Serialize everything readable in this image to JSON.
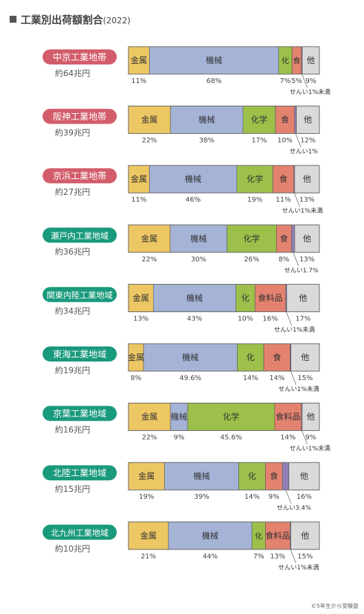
{
  "title": "工業別出荷額割合",
  "year": "(2022)",
  "credit": "©5年生から受験塾",
  "colors": {
    "metal": "#edc763",
    "machine": "#a5b3d6",
    "chemical": "#9cc04a",
    "food": "#e3826f",
    "textile": "#8f7fb4",
    "other": "#dadada",
    "badge_pink": "#d35d6b",
    "badge_green": "#1a9a7c"
  },
  "chart_data": {
    "type": "bar",
    "orientation": "horizontal-stacked-100",
    "unit": "%",
    "rows": [
      {
        "region": "中京工業地帯",
        "total": "約64兆円",
        "badge": "pink",
        "segments": [
          {
            "key": "metal",
            "label": "金属",
            "value": 11,
            "value_label": "11%"
          },
          {
            "key": "machine",
            "label": "機械",
            "value": 68,
            "value_label": "68%"
          },
          {
            "key": "chemical",
            "label": "化",
            "value": 7,
            "value_label": "7%"
          },
          {
            "key": "food",
            "label": "食",
            "value": 5,
            "value_label": "5%"
          },
          {
            "key": "textile",
            "label": "",
            "value": 0.4,
            "value_label": ""
          },
          {
            "key": "other",
            "label": "他",
            "value": 9,
            "value_label": "9%"
          }
        ],
        "textile_note": "せんい1%未満"
      },
      {
        "region": "阪神工業地帯",
        "total": "約39兆円",
        "badge": "pink",
        "segments": [
          {
            "key": "metal",
            "label": "金属",
            "value": 22,
            "value_label": "22%"
          },
          {
            "key": "machine",
            "label": "機械",
            "value": 38,
            "value_label": "38%"
          },
          {
            "key": "chemical",
            "label": "化学",
            "value": 17,
            "value_label": "17%"
          },
          {
            "key": "food",
            "label": "食",
            "value": 10,
            "value_label": "10%"
          },
          {
            "key": "textile",
            "label": "",
            "value": 1,
            "value_label": ""
          },
          {
            "key": "other",
            "label": "他",
            "value": 12,
            "value_label": "12%"
          }
        ],
        "textile_note": "せんい1%"
      },
      {
        "region": "京浜工業地帯",
        "total": "約27兆円",
        "badge": "pink",
        "segments": [
          {
            "key": "metal",
            "label": "金属",
            "value": 11,
            "value_label": "11%"
          },
          {
            "key": "machine",
            "label": "機械",
            "value": 46,
            "value_label": "46%"
          },
          {
            "key": "chemical",
            "label": "化学",
            "value": 19,
            "value_label": "19%"
          },
          {
            "key": "food",
            "label": "食",
            "value": 11,
            "value_label": "11%"
          },
          {
            "key": "textile",
            "label": "",
            "value": 0.4,
            "value_label": ""
          },
          {
            "key": "other",
            "label": "他",
            "value": 13,
            "value_label": "13%"
          }
        ],
        "textile_note": "せんい1%未満"
      },
      {
        "region": "瀬戸内工業地域",
        "total": "約36兆円",
        "badge": "green",
        "segments": [
          {
            "key": "metal",
            "label": "金属",
            "value": 22,
            "value_label": "22%"
          },
          {
            "key": "machine",
            "label": "機械",
            "value": 30,
            "value_label": "30%"
          },
          {
            "key": "chemical",
            "label": "化学",
            "value": 26,
            "value_label": "26%"
          },
          {
            "key": "food",
            "label": "食",
            "value": 8,
            "value_label": "8%"
          },
          {
            "key": "textile",
            "label": "",
            "value": 1.7,
            "value_label": ""
          },
          {
            "key": "other",
            "label": "他",
            "value": 13,
            "value_label": "13%"
          }
        ],
        "textile_note": "せんい1.7%"
      },
      {
        "region": "関東内陸工業地域",
        "total": "約34兆円",
        "badge": "green",
        "segments": [
          {
            "key": "metal",
            "label": "金属",
            "value": 13,
            "value_label": "13%"
          },
          {
            "key": "machine",
            "label": "機械",
            "value": 43,
            "value_label": "43%"
          },
          {
            "key": "chemical",
            "label": "化",
            "value": 10,
            "value_label": "10%"
          },
          {
            "key": "food",
            "label": "食料品",
            "value": 16,
            "value_label": "16%"
          },
          {
            "key": "textile",
            "label": "",
            "value": 0.6,
            "value_label": ""
          },
          {
            "key": "other",
            "label": "他",
            "value": 17,
            "value_label": "17%"
          }
        ],
        "textile_note": "せんい1%未満"
      },
      {
        "region": "東海工業地域",
        "total": "約19兆円",
        "badge": "green",
        "segments": [
          {
            "key": "metal",
            "label": "金属",
            "value": 8,
            "value_label": "8%"
          },
          {
            "key": "machine",
            "label": "機械",
            "value": 49.6,
            "value_label": "49.6%"
          },
          {
            "key": "chemical",
            "label": "化",
            "value": 14,
            "value_label": "14%"
          },
          {
            "key": "food",
            "label": "食",
            "value": 14,
            "value_label": "14%"
          },
          {
            "key": "textile",
            "label": "",
            "value": 0.4,
            "value_label": ""
          },
          {
            "key": "other",
            "label": "他",
            "value": 15,
            "value_label": "15%"
          }
        ],
        "textile_note": "せんい1%未満"
      },
      {
        "region": "京葉工業地域",
        "total": "約16兆円",
        "badge": "green",
        "segments": [
          {
            "key": "metal",
            "label": "金属",
            "value": 22,
            "value_label": "22%"
          },
          {
            "key": "machine",
            "label": "機械",
            "value": 9,
            "value_label": "9%"
          },
          {
            "key": "chemical",
            "label": "化学",
            "value": 45.6,
            "value_label": "45.6%"
          },
          {
            "key": "food",
            "label": "食料品",
            "value": 14,
            "value_label": "14%"
          },
          {
            "key": "textile",
            "label": "",
            "value": 0.4,
            "value_label": ""
          },
          {
            "key": "other",
            "label": "他",
            "value": 9,
            "value_label": "9%"
          }
        ],
        "textile_note": "せんい1%未満"
      },
      {
        "region": "北陸工業地域",
        "total": "約15兆円",
        "badge": "green",
        "segments": [
          {
            "key": "metal",
            "label": "金属",
            "value": 19,
            "value_label": "19%"
          },
          {
            "key": "machine",
            "label": "機械",
            "value": 39,
            "value_label": "39%"
          },
          {
            "key": "chemical",
            "label": "化",
            "value": 14,
            "value_label": "14%"
          },
          {
            "key": "food",
            "label": "食",
            "value": 9,
            "value_label": "9%"
          },
          {
            "key": "textile",
            "label": "",
            "value": 3.4,
            "value_label": ""
          },
          {
            "key": "other",
            "label": "他",
            "value": 16,
            "value_label": "16%"
          }
        ],
        "textile_note": "せんい3.4%"
      },
      {
        "region": "北九州工業地域",
        "total": "約10兆円",
        "badge": "green",
        "segments": [
          {
            "key": "metal",
            "label": "金属",
            "value": 21,
            "value_label": "21%"
          },
          {
            "key": "machine",
            "label": "機械",
            "value": 44,
            "value_label": "44%"
          },
          {
            "key": "chemical",
            "label": "化",
            "value": 7,
            "value_label": "7%"
          },
          {
            "key": "food",
            "label": "食料品",
            "value": 13,
            "value_label": "13%"
          },
          {
            "key": "textile",
            "label": "",
            "value": 0.4,
            "value_label": ""
          },
          {
            "key": "other",
            "label": "他",
            "value": 15,
            "value_label": "15%"
          }
        ],
        "textile_note": "せんい1%未満"
      }
    ]
  }
}
